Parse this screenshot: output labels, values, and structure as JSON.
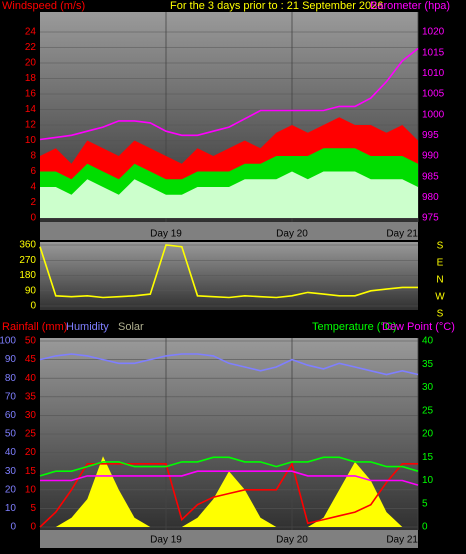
{
  "chart_data": [
    {
      "type": "area",
      "title": "For the 3 days prior to : 21 September 2026",
      "ylabel": "Windspeed (m/s)",
      "y2label": "Barometer (hpa)",
      "x": [
        0,
        3,
        6,
        9,
        12,
        15,
        18,
        21,
        24,
        27,
        30,
        33,
        36,
        39,
        42,
        45,
        48,
        51,
        54,
        57,
        60,
        63,
        66,
        69,
        72
      ],
      "xlim": [
        0,
        72
      ],
      "xticks": [
        {
          "value": 24,
          "label": "Day 19"
        },
        {
          "value": 48,
          "label": "Day 20"
        },
        {
          "value": 72,
          "label": "Day 21"
        }
      ],
      "ylim": [
        0,
        24
      ],
      "yticks": [
        0,
        2,
        4,
        6,
        8,
        10,
        12,
        14,
        16,
        18,
        20,
        22,
        24
      ],
      "y2lim": [
        975,
        1020
      ],
      "y2ticks": [
        975,
        980,
        985,
        990,
        995,
        1000,
        1005,
        1010,
        1015,
        1020
      ],
      "grid": true,
      "series": [
        {
          "type": "area",
          "color": "#ff0000",
          "values": [
            8,
            9,
            7,
            10,
            9,
            8,
            10,
            9,
            8,
            7,
            9,
            8,
            9,
            10,
            9,
            11,
            12,
            11,
            12,
            13,
            12,
            12,
            11,
            12,
            10
          ]
        },
        {
          "type": "area",
          "color": "#00dd00",
          "values": [
            6,
            6,
            5,
            7,
            6,
            5,
            7,
            6,
            5,
            5,
            6,
            6,
            6,
            7,
            7,
            8,
            8,
            8,
            9,
            9,
            9,
            8,
            8,
            8,
            7
          ]
        },
        {
          "type": "area",
          "color": "#ccffcc",
          "values": [
            4,
            4,
            3,
            5,
            4,
            3,
            5,
            4,
            3,
            3,
            4,
            4,
            4,
            5,
            5,
            5,
            6,
            5,
            6,
            6,
            6,
            5,
            5,
            5,
            4
          ]
        },
        {
          "type": "line",
          "axis": "y2",
          "color": "#ff00ff",
          "values": [
            994,
            994.5,
            995,
            996,
            997,
            998.5,
            998.5,
            998,
            996,
            995,
            995,
            996,
            997,
            999,
            1001,
            1001,
            1001,
            1001,
            1001,
            1002,
            1002,
            1004,
            1008,
            1013,
            1016
          ]
        }
      ]
    },
    {
      "type": "line",
      "x": [
        0,
        3,
        6,
        9,
        12,
        15,
        18,
        21,
        24,
        27,
        30,
        33,
        36,
        39,
        42,
        45,
        48,
        51,
        54,
        57,
        60,
        63,
        66,
        69,
        72
      ],
      "xlim": [
        0,
        72
      ],
      "ylim": [
        0,
        360
      ],
      "yticks": [
        0,
        90,
        180,
        270,
        360
      ],
      "direction_labels": [
        "S",
        "E",
        "N",
        "W",
        "S"
      ],
      "grid": true,
      "series": [
        {
          "type": "line",
          "color": "#ffff00",
          "values": [
            350,
            60,
            55,
            60,
            50,
            55,
            60,
            70,
            360,
            350,
            60,
            55,
            50,
            60,
            55,
            50,
            60,
            80,
            70,
            60,
            60,
            90,
            100,
            110,
            110
          ]
        }
      ]
    },
    {
      "type": "line",
      "x": [
        0,
        3,
        6,
        9,
        12,
        15,
        18,
        21,
        24,
        27,
        30,
        33,
        36,
        39,
        42,
        45,
        48,
        51,
        54,
        57,
        60,
        63,
        66,
        69,
        72
      ],
      "xlim": [
        0,
        72
      ],
      "xticks": [
        {
          "value": 24,
          "label": "Day 19"
        },
        {
          "value": 48,
          "label": "Day 20"
        },
        {
          "value": 72,
          "label": "Day 21"
        }
      ],
      "ylim": [
        0,
        100
      ],
      "yticks": [
        0,
        10,
        20,
        30,
        40,
        50,
        60,
        70,
        80,
        90,
        100
      ],
      "y3lim": [
        0,
        50
      ],
      "y3ticks": [
        0,
        5,
        10,
        15,
        20,
        25,
        30,
        35,
        40,
        45,
        50
      ],
      "y2lim": [
        0,
        40
      ],
      "y2ticks": [
        0,
        5,
        10,
        15,
        20,
        25,
        30,
        35,
        40
      ],
      "grid": true,
      "series": [
        {
          "name": "Solar",
          "type": "area",
          "color": "#ffff00",
          "values": [
            0,
            0,
            5,
            15,
            38,
            20,
            5,
            0,
            0,
            0,
            5,
            15,
            30,
            20,
            5,
            0,
            0,
            0,
            5,
            20,
            35,
            25,
            8,
            0,
            0
          ]
        },
        {
          "name": "Humidity",
          "type": "line",
          "color": "#7f7fff",
          "values": [
            90,
            92,
            93,
            92,
            90,
            88,
            88,
            90,
            92,
            93,
            93,
            92,
            88,
            86,
            84,
            86,
            90,
            87,
            85,
            88,
            86,
            84,
            82,
            84,
            82
          ]
        },
        {
          "name": "Rainfall (mm)",
          "type": "line",
          "axis": "y3",
          "color": "#ff0000",
          "values": [
            0,
            4,
            10,
            17,
            17,
            17,
            17,
            17,
            17,
            2,
            6,
            8,
            9,
            10,
            10,
            10,
            17,
            1,
            2,
            3,
            4,
            6,
            12,
            17,
            17
          ]
        },
        {
          "name": "Temperature (°C)",
          "type": "line",
          "axis": "y2",
          "color": "#00ff00",
          "values": [
            11,
            12,
            12,
            13,
            14,
            14,
            13,
            13,
            13,
            14,
            14,
            15,
            15,
            14,
            14,
            13,
            14,
            14,
            15,
            15,
            14,
            14,
            13,
            13,
            12
          ]
        },
        {
          "name": "Dew Point (°C)",
          "type": "line",
          "axis": "y2",
          "color": "#ff00ff",
          "values": [
            10,
            10,
            10,
            11,
            11,
            11,
            11,
            11,
            11,
            11,
            12,
            12,
            12,
            12,
            12,
            12,
            12,
            11,
            11,
            11,
            11,
            10,
            10,
            10,
            9
          ]
        }
      ]
    }
  ]
}
